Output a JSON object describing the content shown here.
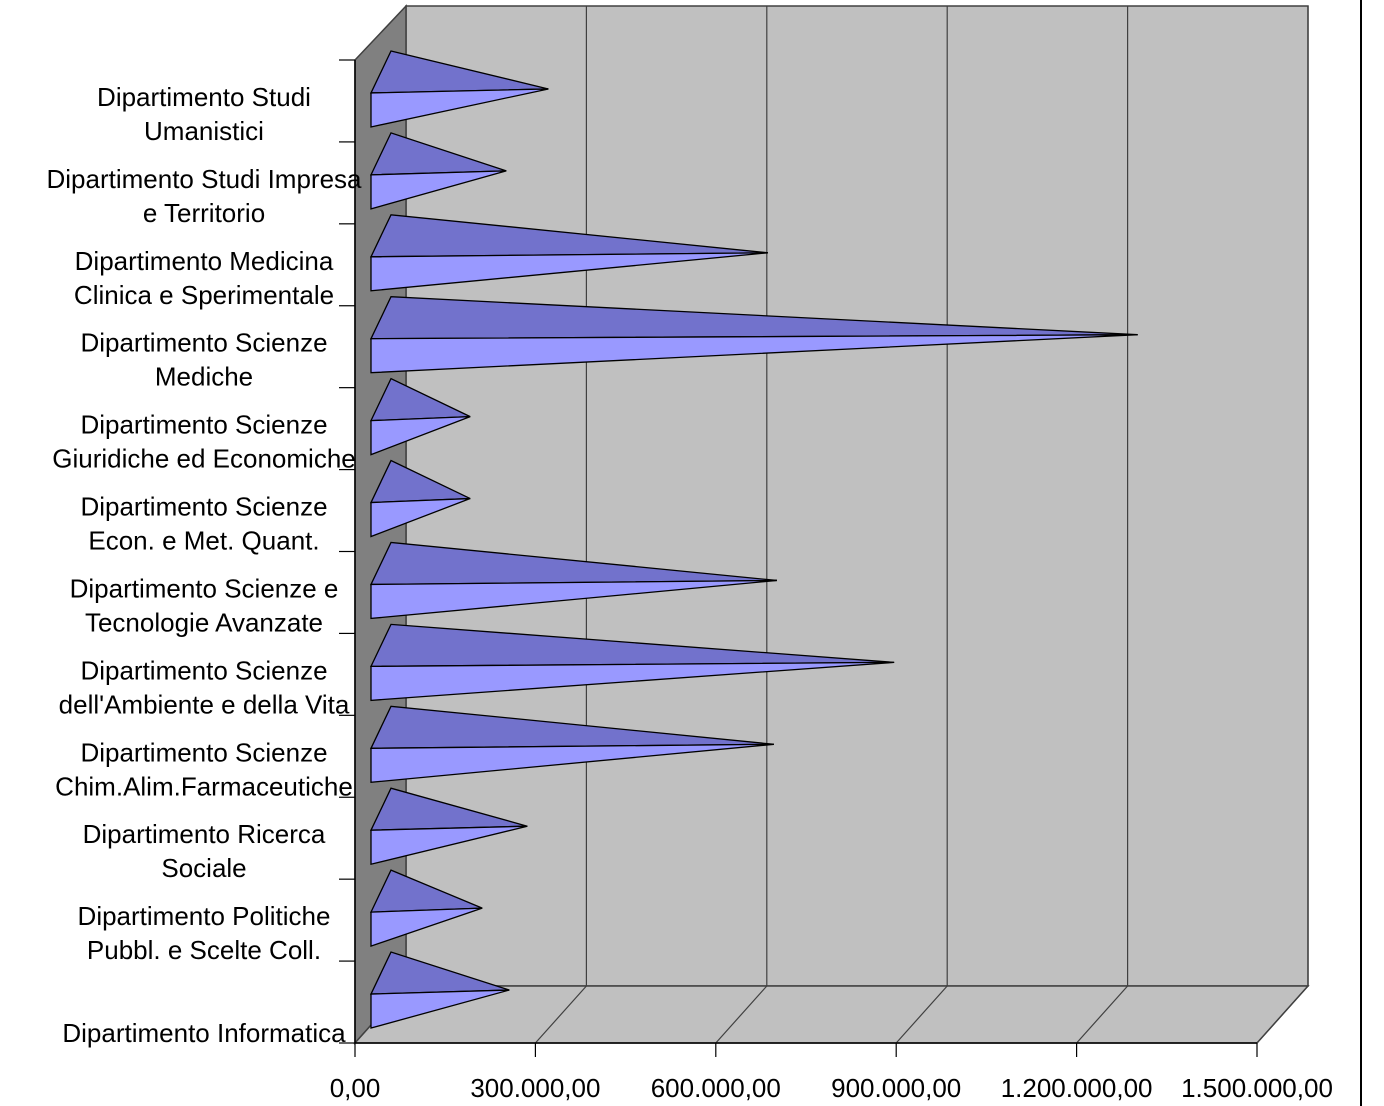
{
  "chart_data": {
    "type": "bar",
    "orientation": "horizontal",
    "style": "3d-cone",
    "title": "",
    "xlabel": "",
    "ylabel": "",
    "xlim": [
      0,
      1500000
    ],
    "tick_labels": [
      "0,00",
      "300.000,00",
      "600.000,00",
      "900.000,00",
      "1.200.000,00",
      "1.500.000,00"
    ],
    "grid": true,
    "legend": "none",
    "categories": [
      [
        "Dipartimento Studi",
        "Umanistici"
      ],
      [
        "Dipartimento Studi Impresa",
        "e Territorio"
      ],
      [
        "Dipartimento Medicina",
        "Clinica e Sperimentale"
      ],
      [
        "Dipartimento Scienze",
        "Mediche"
      ],
      [
        "Dipartimento Scienze",
        "Giuridiche ed Economiche"
      ],
      [
        "Dipartimento Scienze",
        "Econ. e Met. Quant."
      ],
      [
        "Dipartimento Scienze e",
        "Tecnologie Avanzate"
      ],
      [
        "Dipartimento Scienze",
        "dell'Ambiente e della Vita"
      ],
      [
        "Dipartimento Scienze",
        "Chim.Alim.Farmaceutiche"
      ],
      [
        "Dipartimento Ricerca",
        "Sociale"
      ],
      [
        "Dipartimento Politiche",
        "Pubbl. e Scelte Coll."
      ],
      [
        "Dipartimento Informatica"
      ]
    ],
    "values": [
      275000,
      205000,
      640000,
      1255000,
      145000,
      145000,
      655000,
      850000,
      650000,
      240000,
      165000,
      210000
    ],
    "colors": {
      "cone_front": "#9999ff",
      "cone_top": "#7272cc",
      "wall_back": "#c0c0c0",
      "wall_side": "#808080",
      "floor": "#c0c0c0",
      "gridline": "#404040",
      "outline": "#000000"
    }
  }
}
